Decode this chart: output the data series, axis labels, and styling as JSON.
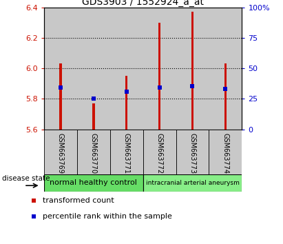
{
  "title": "GDS3903 / 1552924_a_at",
  "samples": [
    "GSM663769",
    "GSM663770",
    "GSM663771",
    "GSM663772",
    "GSM663773",
    "GSM663774"
  ],
  "bar_tops": [
    6.03,
    5.77,
    5.95,
    6.3,
    6.37,
    6.03
  ],
  "blue_markers": [
    5.875,
    5.8,
    5.845,
    5.875,
    5.885,
    5.865
  ],
  "bar_bottom": 5.6,
  "ylim": [
    5.6,
    6.4
  ],
  "y2lim": [
    0,
    100
  ],
  "yticks": [
    5.6,
    5.8,
    6.0,
    6.2,
    6.4
  ],
  "y2ticks": [
    0,
    25,
    50,
    75,
    100
  ],
  "bar_color": "#cc1100",
  "blue_color": "#0000cc",
  "groups": [
    {
      "label": "normal healthy control",
      "start": 0,
      "end": 3,
      "color": "#66dd66"
    },
    {
      "label": "intracranial arterial aneurysm",
      "start": 3,
      "end": 6,
      "color": "#88ee88"
    }
  ],
  "disease_label": "disease state",
  "legend_items": [
    {
      "color": "#cc1100",
      "label": "transformed count"
    },
    {
      "color": "#0000cc",
      "label": "percentile rank within the sample"
    }
  ],
  "bg_color": "#c8c8c8",
  "bar_width": 0.08,
  "title_fontsize": 10,
  "tick_fontsize": 8,
  "sample_fontsize": 7,
  "legend_fontsize": 8
}
